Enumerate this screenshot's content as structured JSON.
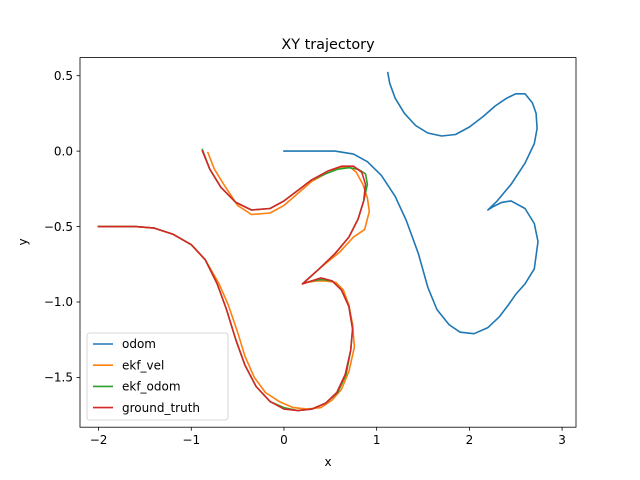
{
  "chart_data": {
    "type": "line",
    "title": "XY trajectory",
    "xlabel": "x",
    "ylabel": "y",
    "xlim": [
      -2.2,
      3.15
    ],
    "ylim": [
      -1.83,
      0.62
    ],
    "xticks": [
      -2,
      -1,
      0,
      1,
      2,
      3
    ],
    "yticks": [
      0.5,
      0.0,
      -0.5,
      -1.0,
      -1.5
    ],
    "xtick_labels": [
      "−2",
      "−1",
      "0",
      "1",
      "2",
      "3"
    ],
    "ytick_labels": [
      "0.5",
      "0.0",
      "−0.5",
      "−1.0",
      "−1.5"
    ],
    "grid": false,
    "legend_position": "lower-left",
    "series": [
      {
        "name": "odom",
        "color": "#1f77b4",
        "points": [
          [
            0.0,
            0.0
          ],
          [
            0.3,
            0.0
          ],
          [
            0.55,
            0.0
          ],
          [
            0.75,
            -0.02
          ],
          [
            0.9,
            -0.07
          ],
          [
            1.05,
            -0.16
          ],
          [
            1.2,
            -0.3
          ],
          [
            1.32,
            -0.46
          ],
          [
            1.45,
            -0.68
          ],
          [
            1.55,
            -0.9
          ],
          [
            1.65,
            -1.05
          ],
          [
            1.78,
            -1.15
          ],
          [
            1.9,
            -1.2
          ],
          [
            2.05,
            -1.21
          ],
          [
            2.2,
            -1.17
          ],
          [
            2.32,
            -1.1
          ],
          [
            2.42,
            -1.02
          ],
          [
            2.5,
            -0.95
          ],
          [
            2.6,
            -0.88
          ],
          [
            2.7,
            -0.78
          ],
          [
            2.74,
            -0.6
          ],
          [
            2.7,
            -0.48
          ],
          [
            2.6,
            -0.38
          ],
          [
            2.45,
            -0.33
          ],
          [
            2.35,
            -0.34
          ],
          [
            2.25,
            -0.37
          ],
          [
            2.2,
            -0.39
          ],
          [
            2.3,
            -0.33
          ],
          [
            2.45,
            -0.22
          ],
          [
            2.6,
            -0.08
          ],
          [
            2.7,
            0.05
          ],
          [
            2.73,
            0.15
          ],
          [
            2.72,
            0.25
          ],
          [
            2.68,
            0.32
          ],
          [
            2.6,
            0.38
          ],
          [
            2.5,
            0.38
          ],
          [
            2.4,
            0.35
          ],
          [
            2.28,
            0.3
          ],
          [
            2.15,
            0.23
          ],
          [
            2.0,
            0.16
          ],
          [
            1.85,
            0.11
          ],
          [
            1.7,
            0.1
          ],
          [
            1.55,
            0.12
          ],
          [
            1.42,
            0.17
          ],
          [
            1.3,
            0.25
          ],
          [
            1.2,
            0.35
          ],
          [
            1.14,
            0.45
          ],
          [
            1.12,
            0.52
          ]
        ]
      },
      {
        "name": "ekf_vel",
        "color": "#ff7f0e",
        "points": [
          [
            -2.0,
            -0.5
          ],
          [
            -1.6,
            -0.5
          ],
          [
            -1.4,
            -0.51
          ],
          [
            -1.2,
            -0.55
          ],
          [
            -1.0,
            -0.62
          ],
          [
            -0.85,
            -0.72
          ],
          [
            -0.7,
            -0.88
          ],
          [
            -0.6,
            -1.02
          ],
          [
            -0.5,
            -1.2
          ],
          [
            -0.42,
            -1.36
          ],
          [
            -0.32,
            -1.5
          ],
          [
            -0.2,
            -1.6
          ],
          [
            -0.05,
            -1.66
          ],
          [
            0.1,
            -1.7
          ],
          [
            0.25,
            -1.71
          ],
          [
            0.4,
            -1.7
          ],
          [
            0.52,
            -1.65
          ],
          [
            0.62,
            -1.58
          ],
          [
            0.7,
            -1.46
          ],
          [
            0.76,
            -1.3
          ],
          [
            0.74,
            -1.15
          ],
          [
            0.7,
            -1.02
          ],
          [
            0.64,
            -0.92
          ],
          [
            0.56,
            -0.87
          ],
          [
            0.45,
            -0.86
          ],
          [
            0.35,
            -0.86
          ],
          [
            0.25,
            -0.87
          ],
          [
            0.2,
            -0.88
          ],
          [
            0.4,
            -0.77
          ],
          [
            0.6,
            -0.67
          ],
          [
            0.75,
            -0.57
          ],
          [
            0.87,
            -0.52
          ],
          [
            0.92,
            -0.4
          ],
          [
            0.9,
            -0.31
          ],
          [
            0.85,
            -0.22
          ],
          [
            0.78,
            -0.14
          ],
          [
            0.7,
            -0.1
          ],
          [
            0.6,
            -0.11
          ],
          [
            0.45,
            -0.15
          ],
          [
            0.3,
            -0.2
          ],
          [
            0.15,
            -0.28
          ],
          [
            0.0,
            -0.36
          ],
          [
            -0.15,
            -0.41
          ],
          [
            -0.35,
            -0.42
          ],
          [
            -0.5,
            -0.36
          ],
          [
            -0.65,
            -0.22
          ],
          [
            -0.75,
            -0.12
          ],
          [
            -0.82,
            -0.01
          ]
        ]
      },
      {
        "name": "ekf_odom",
        "color": "#2ca02c",
        "points": [
          [
            -2.0,
            -0.5
          ],
          [
            -1.6,
            -0.5
          ],
          [
            -1.4,
            -0.51
          ],
          [
            -1.2,
            -0.55
          ],
          [
            -1.0,
            -0.62
          ],
          [
            -0.85,
            -0.72
          ],
          [
            -0.72,
            -0.88
          ],
          [
            -0.62,
            -1.05
          ],
          [
            -0.52,
            -1.25
          ],
          [
            -0.42,
            -1.42
          ],
          [
            -0.3,
            -1.56
          ],
          [
            -0.15,
            -1.66
          ],
          [
            0.0,
            -1.7
          ],
          [
            0.15,
            -1.72
          ],
          [
            0.3,
            -1.71
          ],
          [
            0.45,
            -1.67
          ],
          [
            0.58,
            -1.6
          ],
          [
            0.67,
            -1.48
          ],
          [
            0.72,
            -1.32
          ],
          [
            0.74,
            -1.18
          ],
          [
            0.7,
            -1.03
          ],
          [
            0.62,
            -0.92
          ],
          [
            0.52,
            -0.86
          ],
          [
            0.4,
            -0.85
          ],
          [
            0.3,
            -0.86
          ],
          [
            0.2,
            -0.88
          ],
          [
            0.38,
            -0.78
          ],
          [
            0.55,
            -0.68
          ],
          [
            0.7,
            -0.57
          ],
          [
            0.8,
            -0.45
          ],
          [
            0.86,
            -0.33
          ],
          [
            0.9,
            -0.22
          ],
          [
            0.88,
            -0.15
          ],
          [
            0.8,
            -0.12
          ],
          [
            0.7,
            -0.11
          ],
          [
            0.58,
            -0.12
          ],
          [
            0.45,
            -0.15
          ],
          [
            0.3,
            -0.19
          ],
          [
            0.15,
            -0.26
          ],
          [
            0.0,
            -0.33
          ],
          [
            -0.15,
            -0.38
          ],
          [
            -0.35,
            -0.39
          ],
          [
            -0.52,
            -0.34
          ],
          [
            -0.68,
            -0.24
          ],
          [
            -0.8,
            -0.12
          ],
          [
            -0.88,
            0.01
          ]
        ]
      },
      {
        "name": "ground_truth",
        "color": "#d62728",
        "points": [
          [
            -2.0,
            -0.5
          ],
          [
            -1.6,
            -0.5
          ],
          [
            -1.4,
            -0.51
          ],
          [
            -1.2,
            -0.55
          ],
          [
            -1.0,
            -0.62
          ],
          [
            -0.85,
            -0.72
          ],
          [
            -0.72,
            -0.88
          ],
          [
            -0.62,
            -1.05
          ],
          [
            -0.52,
            -1.25
          ],
          [
            -0.42,
            -1.42
          ],
          [
            -0.3,
            -1.56
          ],
          [
            -0.15,
            -1.66
          ],
          [
            0.0,
            -1.71
          ],
          [
            0.15,
            -1.72
          ],
          [
            0.3,
            -1.71
          ],
          [
            0.45,
            -1.67
          ],
          [
            0.57,
            -1.6
          ],
          [
            0.66,
            -1.48
          ],
          [
            0.72,
            -1.32
          ],
          [
            0.74,
            -1.18
          ],
          [
            0.7,
            -1.03
          ],
          [
            0.62,
            -0.92
          ],
          [
            0.52,
            -0.86
          ],
          [
            0.4,
            -0.84
          ],
          [
            0.3,
            -0.86
          ],
          [
            0.2,
            -0.88
          ],
          [
            0.38,
            -0.78
          ],
          [
            0.55,
            -0.68
          ],
          [
            0.7,
            -0.57
          ],
          [
            0.8,
            -0.45
          ],
          [
            0.86,
            -0.33
          ],
          [
            0.88,
            -0.22
          ],
          [
            0.84,
            -0.14
          ],
          [
            0.75,
            -0.1
          ],
          [
            0.62,
            -0.1
          ],
          [
            0.48,
            -0.13
          ],
          [
            0.3,
            -0.19
          ],
          [
            0.15,
            -0.26
          ],
          [
            0.0,
            -0.33
          ],
          [
            -0.15,
            -0.38
          ],
          [
            -0.35,
            -0.39
          ],
          [
            -0.52,
            -0.34
          ],
          [
            -0.68,
            -0.24
          ],
          [
            -0.8,
            -0.12
          ],
          [
            -0.88,
            0.0
          ]
        ]
      }
    ]
  }
}
